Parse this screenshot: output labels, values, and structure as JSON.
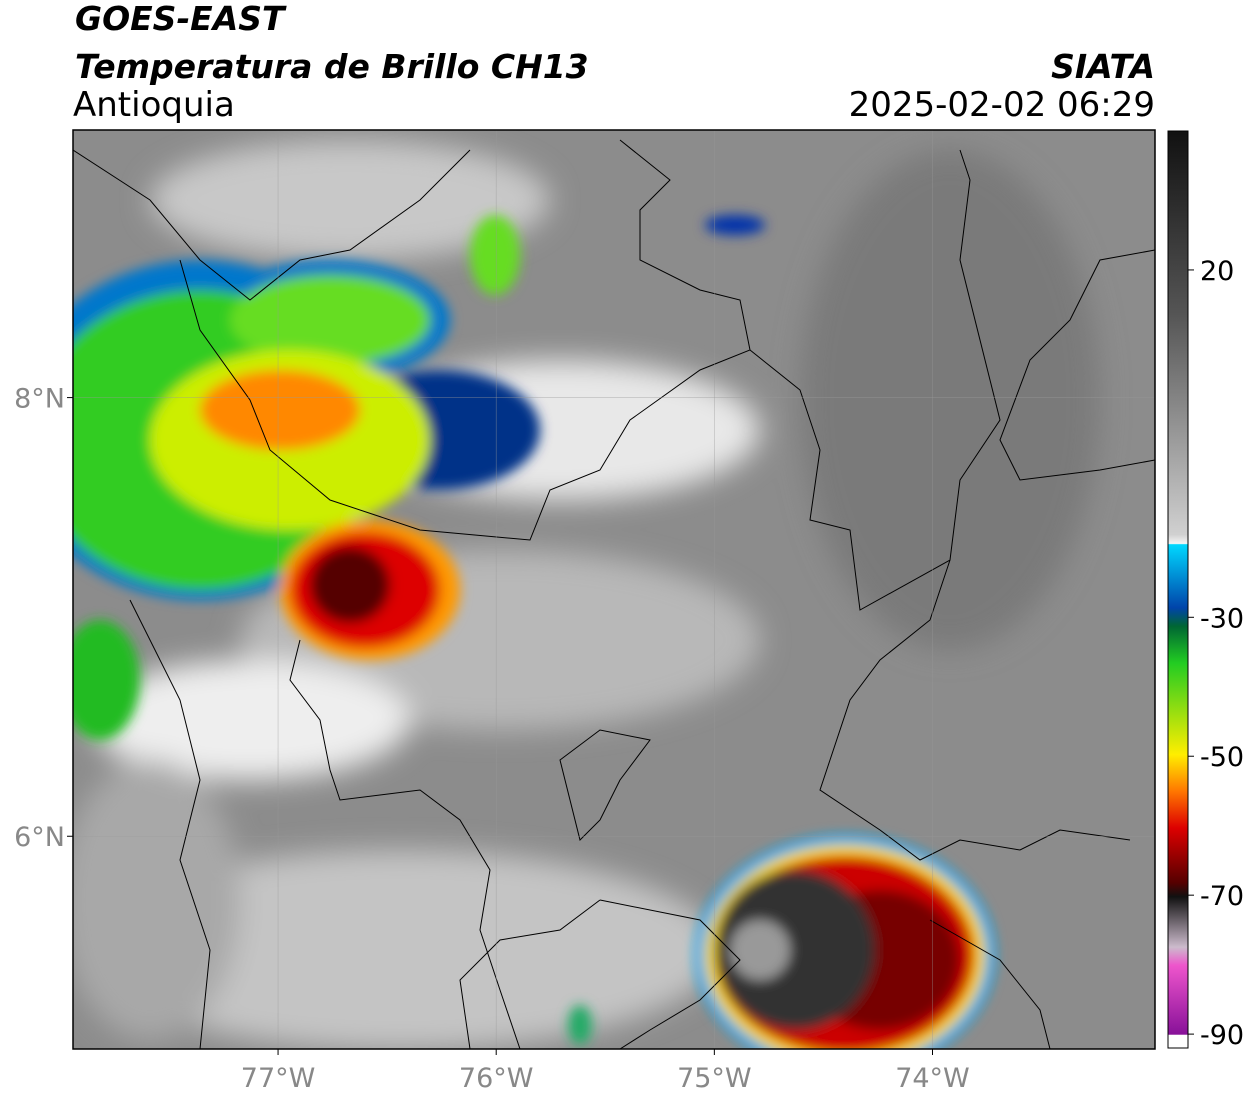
{
  "header": {
    "title": "GOES-EAST",
    "subtitle": "Temperatura de Brillo CH13",
    "region": "Antioquia",
    "source": "SIATA",
    "datetime": "2025-02-02 06:29"
  },
  "map": {
    "xlim": [
      -77.94,
      -72.98
    ],
    "ylim": [
      5.03,
      9.22
    ],
    "xticks": [
      {
        "value": -77,
        "label": "77°W"
      },
      {
        "value": -76,
        "label": "76°W"
      },
      {
        "value": -75,
        "label": "75°W"
      },
      {
        "value": -74,
        "label": "74°W"
      }
    ],
    "yticks": [
      {
        "value": 8,
        "label": "8°N"
      },
      {
        "value": 6,
        "label": "6°N"
      }
    ],
    "grid": true
  },
  "colorbar": {
    "lim": [
      -92,
      40
    ],
    "ticks": [
      20,
      -30,
      -50,
      -70,
      -90
    ]
  }
}
